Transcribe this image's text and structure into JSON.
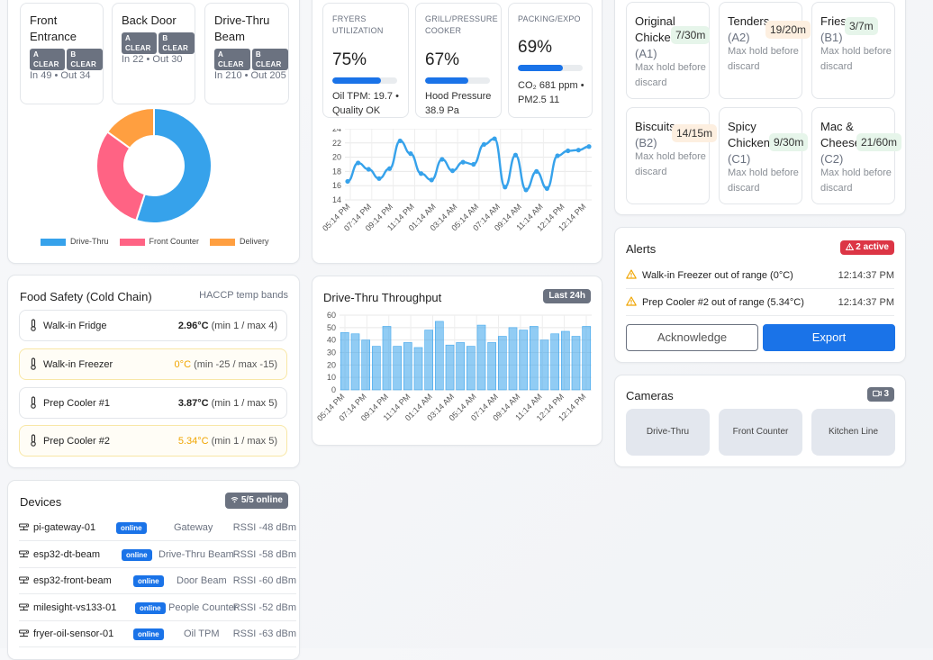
{
  "doors": [
    {
      "name": "Front Entrance",
      "badges": [
        "A CLEAR",
        "B CLEAR"
      ],
      "counts": "In 49 • Out 34"
    },
    {
      "name": "Back Door",
      "badges": [
        "A CLEAR",
        "B CLEAR"
      ],
      "counts": "In 22 • Out 30"
    },
    {
      "name": "Drive-Thru Beam",
      "badges": [
        "A CLEAR",
        "B CLEAR"
      ],
      "counts": "In 210 • Out 205"
    }
  ],
  "channel_mix": {
    "legend": [
      "Drive-Thru",
      "Front Counter",
      "Delivery"
    ],
    "colors": [
      "#36a2eb",
      "#ff6384",
      "#ff9f40"
    ],
    "values": [
      55,
      30,
      15
    ]
  },
  "stations": [
    {
      "label": "FRYERS UTILIZATION",
      "value": "75%",
      "fraction": 0.75,
      "detail": "Oil TPM: 19.7 • Quality OK"
    },
    {
      "label": "GRILL/PRESSURE COOKER",
      "value": "67%",
      "fraction": 0.67,
      "detail": "Hood Pressure 38.9 Pa"
    },
    {
      "label": "PACKING/EXPO",
      "value": "69%",
      "fraction": 0.69,
      "detail": "CO₂ 681 ppm • PM2.5 11"
    }
  ],
  "hold_items": [
    {
      "name": "Original Chicken",
      "code": "(A1)",
      "time": "7/30m",
      "status_color": "#e6f5ea",
      "note": "Max hold before discard"
    },
    {
      "name": "Tenders",
      "code": "(A2)",
      "time": "19/20m",
      "status_color": "#fdefe0",
      "note": "Max hold before discard"
    },
    {
      "name": "Fries",
      "code": "(B1)",
      "time": "3/7m",
      "status_color": "#e6f5ea",
      "note": "Max hold before discard"
    },
    {
      "name": "Biscuits",
      "code": "(B2)",
      "time": "14/15m",
      "status_color": "#fdefe0",
      "note": "Max hold before discard"
    },
    {
      "name": "Spicy Chicken",
      "code": "(C1)",
      "time": "9/30m",
      "status_color": "#e6f5ea",
      "note": "Max hold before discard"
    },
    {
      "name": "Mac & Cheese",
      "code": "(C2)",
      "time": "21/60m",
      "status_color": "#e6f5ea",
      "note": "Max hold before discard"
    }
  ],
  "food_safety": {
    "title": "Food Safety (Cold Chain)",
    "subtitle": "HACCP temp bands",
    "rows": [
      {
        "name": "Walk-in Fridge",
        "value": "2.96°C",
        "range": "(min 1 / max 4)",
        "warn": false
      },
      {
        "name": "Walk-in Freezer",
        "value": "0°C",
        "range": "(min -25 / max -15)",
        "warn": true
      },
      {
        "name": "Prep Cooler #1",
        "value": "3.87°C",
        "range": "(min 1 / max 5)",
        "warn": false
      },
      {
        "name": "Prep Cooler #2",
        "value": "5.34°C",
        "range": "(min 1 / max 5)",
        "warn": true
      }
    ]
  },
  "throughput": {
    "title": "Drive-Thru Throughput",
    "badge": "Last 24h"
  },
  "alerts": {
    "title": "Alerts",
    "badge": "2 active",
    "items": [
      {
        "text": "Walk-in Freezer out of range (0°C)",
        "time": "12:14:37 PM"
      },
      {
        "text": "Prep Cooler #2 out of range (5.34°C)",
        "time": "12:14:37 PM"
      }
    ],
    "acknowledge_label": "Acknowledge",
    "export_label": "Export"
  },
  "cameras": {
    "title": "Cameras",
    "badge": "3",
    "items": [
      "Drive-Thru",
      "Front Counter",
      "Kitchen Line"
    ]
  },
  "devices": {
    "title": "Devices",
    "badge": "5/5 online",
    "items": [
      {
        "name": "pi-gateway-01",
        "status": "online",
        "type": "Gateway",
        "rssi": "RSSI -48 dBm"
      },
      {
        "name": "esp32-dt-beam",
        "status": "online",
        "type": "Drive-Thru Beam",
        "rssi": "RSSI -58 dBm"
      },
      {
        "name": "esp32-front-beam",
        "status": "online",
        "type": "Door Beam",
        "rssi": "RSSI -60 dBm"
      },
      {
        "name": "milesight-vs133-01",
        "status": "online",
        "type": "People Counter",
        "rssi": "RSSI -52 dBm"
      },
      {
        "name": "fryer-oil-sensor-01",
        "status": "online",
        "type": "Oil TPM",
        "rssi": "RSSI -63 dBm"
      }
    ]
  },
  "chart_data": [
    {
      "type": "pie",
      "categories": [
        "Drive-Thru",
        "Front Counter",
        "Delivery"
      ],
      "values": [
        55,
        30,
        15
      ],
      "legend_position": "bottom"
    },
    {
      "type": "line",
      "x": [
        "05:14 PM",
        "06:14 PM",
        "07:14 PM",
        "08:14 PM",
        "09:14 PM",
        "10:14 PM",
        "11:14 PM",
        "12:14 AM",
        "01:14 AM",
        "02:14 AM",
        "03:14 AM",
        "04:14 AM",
        "05:14 AM",
        "06:14 AM",
        "07:14 AM",
        "08:14 AM",
        "09:14 AM",
        "10:14 AM",
        "11:14 AM",
        "12:14 PM",
        "01:14 PM",
        "02:14 PM",
        "03:14 PM",
        "04:14 PM"
      ],
      "xticks": [
        "05:14 PM",
        "07:14 PM",
        "09:14 PM",
        "11:14 PM",
        "01:14 AM",
        "03:14 AM",
        "05:14 AM",
        "07:14 AM",
        "09:14 AM",
        "11:14 AM",
        "12:14 PM",
        "12:14 PM"
      ],
      "values": [
        16.6,
        19.2,
        18.3,
        17.0,
        18.4,
        22.3,
        20.5,
        17.7,
        16.8,
        19.7,
        18.1,
        19.3,
        19.0,
        21.8,
        22.6,
        15.8,
        20.3,
        15.4,
        18.0,
        15.6,
        20.2,
        20.9,
        21.0,
        21.5
      ],
      "ylim": [
        14,
        24
      ],
      "yticks": [
        14,
        16,
        18,
        20,
        22,
        24
      ],
      "grid": true
    },
    {
      "type": "bar",
      "x": [
        "05:14 PM",
        "06:14 PM",
        "07:14 PM",
        "08:14 PM",
        "09:14 PM",
        "10:14 PM",
        "11:14 PM",
        "12:14 AM",
        "01:14 AM",
        "02:14 AM",
        "03:14 AM",
        "04:14 AM",
        "05:14 AM",
        "06:14 AM",
        "07:14 AM",
        "08:14 AM",
        "09:14 AM",
        "10:14 AM",
        "11:14 AM",
        "12:14 PM",
        "01:14 PM",
        "02:14 PM",
        "03:14 PM",
        "04:14 PM"
      ],
      "xticks": [
        "05:14 PM",
        "07:14 PM",
        "09:14 PM",
        "11:14 PM",
        "01:14 AM",
        "03:14 AM",
        "05:14 AM",
        "07:14 AM",
        "09:14 AM",
        "11:14 AM",
        "12:14 PM",
        "12:14 PM"
      ],
      "values": [
        46,
        45,
        40,
        35,
        51,
        35,
        38,
        34,
        48,
        55,
        36,
        38,
        35,
        52,
        38,
        43,
        50,
        48,
        51,
        40,
        45,
        47,
        43,
        51
      ],
      "ylim": [
        0,
        60
      ],
      "yticks": [
        0,
        10,
        20,
        30,
        40,
        50,
        60
      ],
      "grid": true
    }
  ]
}
